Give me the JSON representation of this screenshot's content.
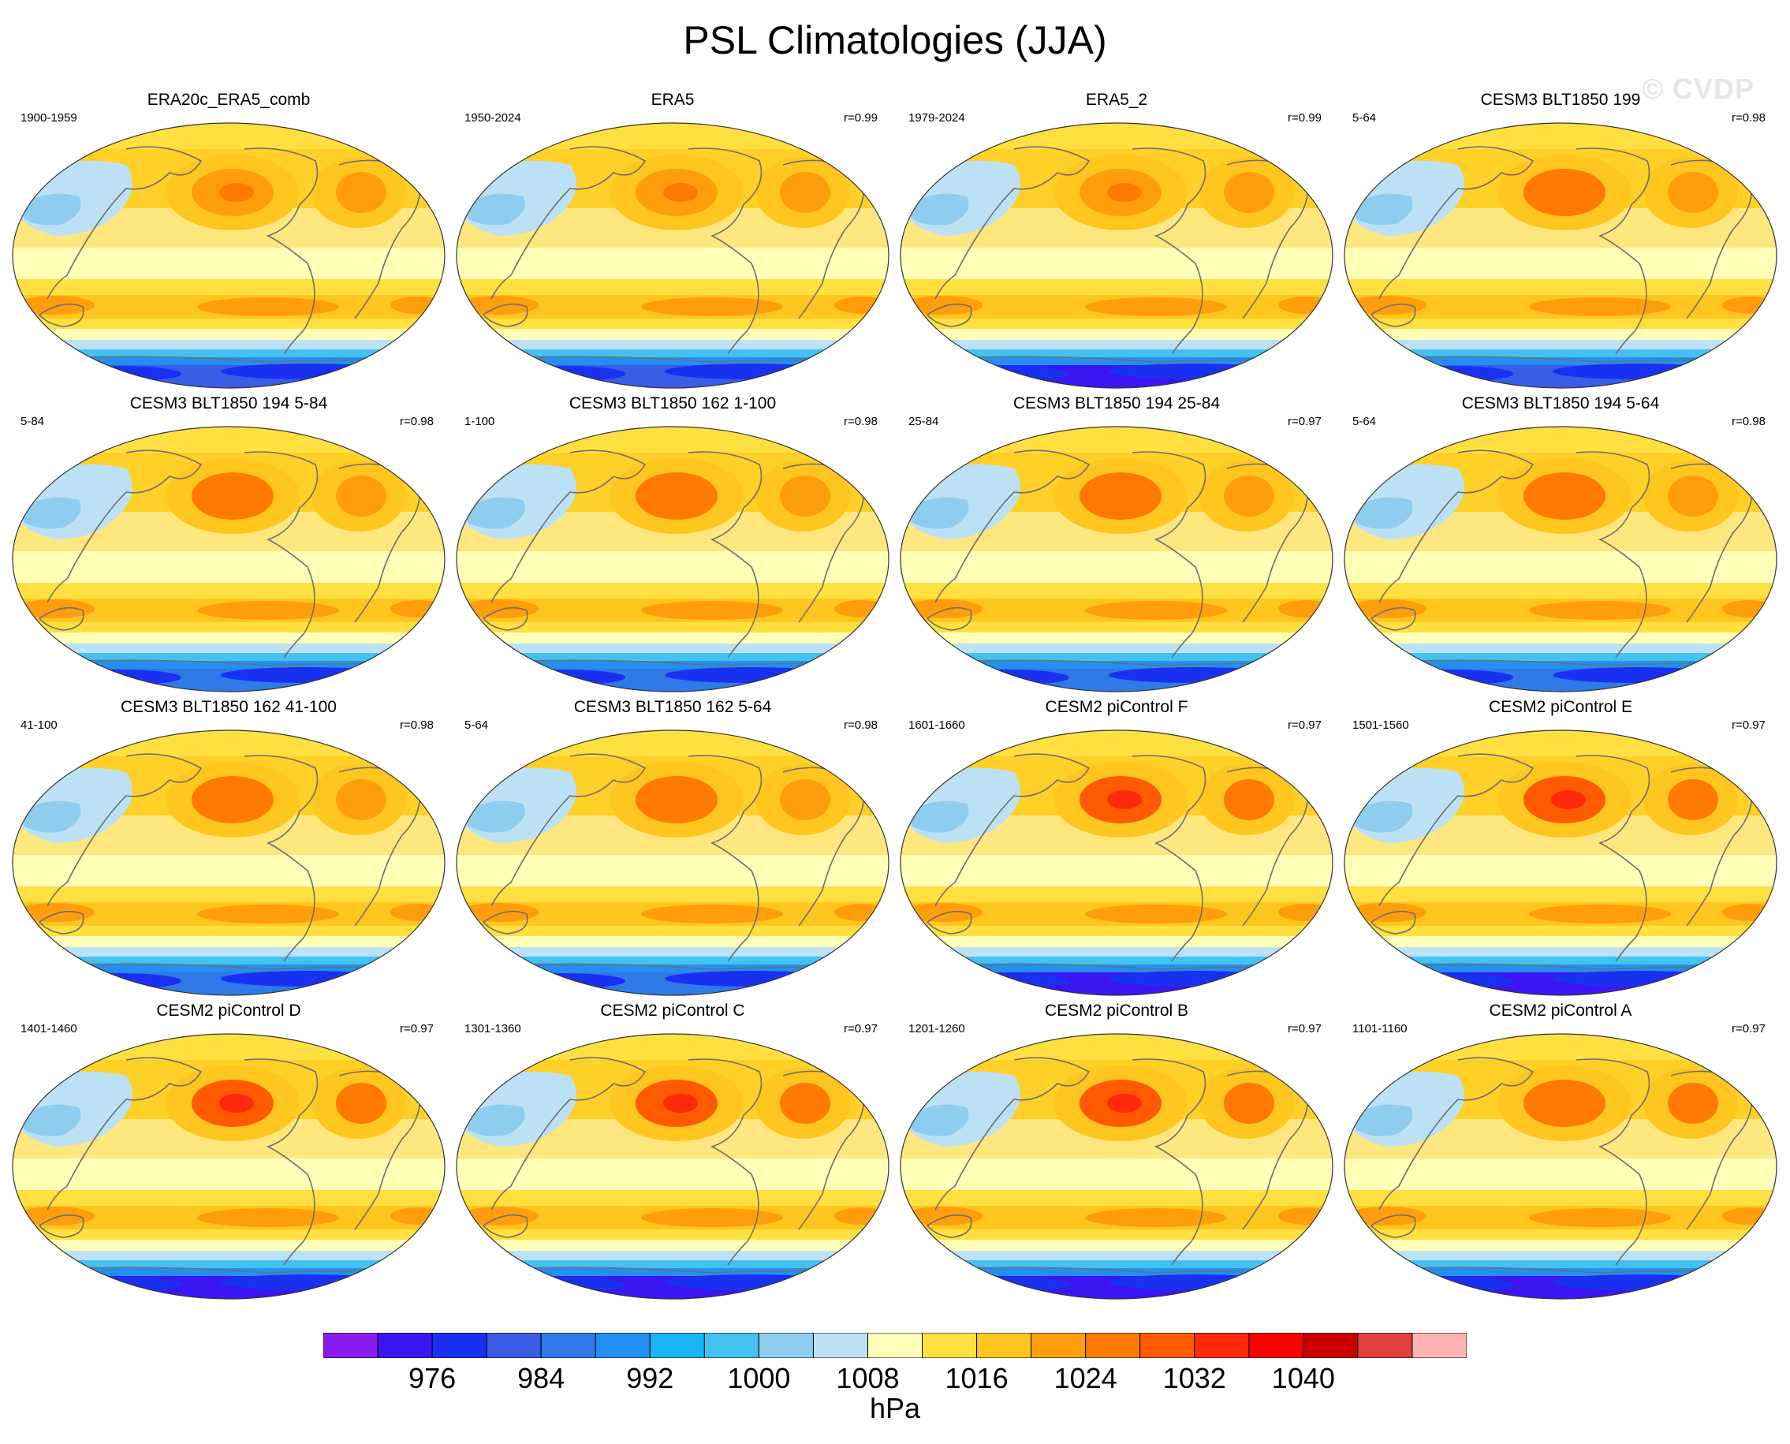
{
  "title": "PSL Climatologies (JJA)",
  "watermark": "© CVDP",
  "colorbar": {
    "colors": [
      "#8a1ded",
      "#3b16f2",
      "#1a30f0",
      "#3b5ce6",
      "#2f7ae8",
      "#2190f2",
      "#18b4f5",
      "#43c2f2",
      "#8fcdee",
      "#bde1f4",
      "#ffffb8",
      "#ffe040",
      "#ffc61f",
      "#ff9e0d",
      "#ff7a00",
      "#ff5a00",
      "#ff2a0c",
      "#ff0000",
      "#cc0000",
      "#e04040",
      "#ffb3b3"
    ],
    "labels": [
      "976",
      "984",
      "992",
      "1000",
      "1008",
      "1016",
      "1024",
      "1032",
      "1040"
    ],
    "units": "hPa"
  },
  "panels": [
    {
      "title": "ERA20c_ERA5_comb",
      "years": "1900-1959",
      "corr": "",
      "cold": "#3b5ce6",
      "highN": "#ff9e0d",
      "highC": "#ff9e0d"
    },
    {
      "title": "ERA5",
      "years": "1950-2024",
      "corr": "r=0.99",
      "cold": "#3b5ce6",
      "highN": "#ff9e0d",
      "highC": "#ff9e0d"
    },
    {
      "title": "ERA5_2",
      "years": "1979-2024",
      "corr": "r=0.99",
      "cold": "#3b16f2",
      "highN": "#ff9e0d",
      "highC": "#ff9e0d"
    },
    {
      "title": "CESM3 BLT1850 199",
      "years": "5-64",
      "corr": "r=0.98",
      "cold": "#3b5ce6",
      "highN": "#ff7a00",
      "highC": "#ff9e0d"
    },
    {
      "title": "CESM3 BLT1850 194 5-84",
      "years": "5-84",
      "corr": "r=0.98",
      "cold": "#2f7ae8",
      "highN": "#ff7a00",
      "highC": "#ff9e0d"
    },
    {
      "title": "CESM3 BLT1850 162 1-100",
      "years": "1-100",
      "corr": "r=0.98",
      "cold": "#2f7ae8",
      "highN": "#ff7a00",
      "highC": "#ff9e0d"
    },
    {
      "title": "CESM3 BLT1850 194 25-84",
      "years": "25-84",
      "corr": "r=0.97",
      "cold": "#2f7ae8",
      "highN": "#ff7a00",
      "highC": "#ff9e0d"
    },
    {
      "title": "CESM3 BLT1850 194 5-64",
      "years": "5-64",
      "corr": "r=0.98",
      "cold": "#2f7ae8",
      "highN": "#ff7a00",
      "highC": "#ff9e0d"
    },
    {
      "title": "CESM3 BLT1850 162 41-100",
      "years": "41-100",
      "corr": "r=0.98",
      "cold": "#2f7ae8",
      "highN": "#ff7a00",
      "highC": "#ff9e0d"
    },
    {
      "title": "CESM3 BLT1850 162 5-64",
      "years": "5-64",
      "corr": "r=0.98",
      "cold": "#2f7ae8",
      "highN": "#ff7a00",
      "highC": "#ff9e0d"
    },
    {
      "title": "CESM2 piControl F",
      "years": "1601-1660",
      "corr": "r=0.97",
      "cold": "#3b16f2",
      "highN": "#ff5a00",
      "highC": "#ff7a00"
    },
    {
      "title": "CESM2 piControl E",
      "years": "1501-1560",
      "corr": "r=0.97",
      "cold": "#3b16f2",
      "highN": "#ff5a00",
      "highC": "#ff7a00"
    },
    {
      "title": "CESM2 piControl D",
      "years": "1401-1460",
      "corr": "r=0.97",
      "cold": "#3b16f2",
      "highN": "#ff5a00",
      "highC": "#ff7a00"
    },
    {
      "title": "CESM2 piControl C",
      "years": "1301-1360",
      "corr": "r=0.97",
      "cold": "#3b16f2",
      "highN": "#ff5a00",
      "highC": "#ff7a00"
    },
    {
      "title": "CESM2 piControl B",
      "years": "1201-1260",
      "corr": "r=0.97",
      "cold": "#3b16f2",
      "highN": "#ff5a00",
      "highC": "#ff7a00"
    },
    {
      "title": "CESM2 piControl A",
      "years": "1101-1160",
      "corr": "r=0.97",
      "cold": "#3b16f2",
      "highN": "#ff7a00",
      "highC": "#ff7a00"
    }
  ]
}
